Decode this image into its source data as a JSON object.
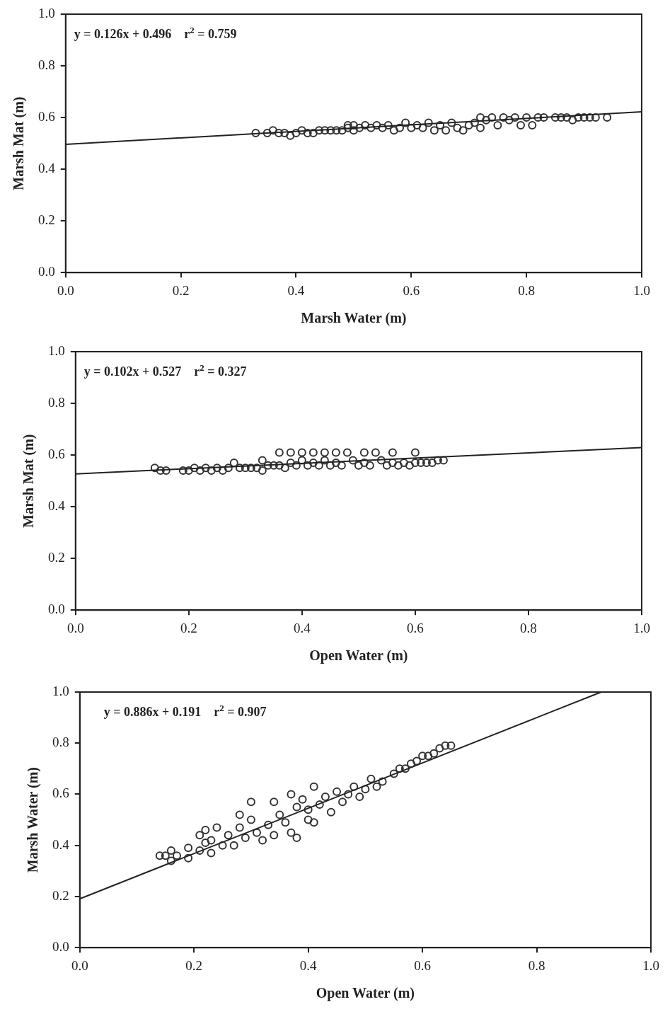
{
  "chart_data": [
    {
      "type": "scatter",
      "xlabel": "Marsh Water (m)",
      "ylabel": "Marsh Mat (m)",
      "annotations": [
        "y = 0.126x + 0.496    r$^{2}$ = 0.759"
      ],
      "xlim": [
        0,
        1
      ],
      "ylim": [
        0,
        1
      ],
      "xticks": [
        {
          "value": 0,
          "label": "0.0"
        },
        {
          "value": 0.2,
          "label": "0.2"
        },
        {
          "value": 0.4,
          "label": "0.4"
        },
        {
          "value": 0.6,
          "label": "0.6"
        },
        {
          "value": 0.8,
          "label": "0.8"
        },
        {
          "value": 1,
          "label": "1.0"
        }
      ],
      "yticks": [
        {
          "value": 0,
          "label": "0.0"
        },
        {
          "value": 0.2,
          "label": "0.2"
        },
        {
          "value": 0.4,
          "label": "0.4"
        },
        {
          "value": 0.6,
          "label": "0.6"
        },
        {
          "value": 0.8,
          "label": "0.8"
        },
        {
          "value": 1,
          "label": "1.0"
        }
      ],
      "grid": false,
      "legend": false,
      "marker": "circle",
      "series": [
        {
          "type": "scatter",
          "color": "#333333",
          "x": [
            0.33,
            0.35,
            0.36,
            0.37,
            0.38,
            0.39,
            0.4,
            0.41,
            0.42,
            0.43,
            0.44,
            0.45,
            0.46,
            0.47,
            0.48,
            0.49,
            0.49,
            0.5,
            0.5,
            0.51,
            0.52,
            0.53,
            0.54,
            0.55,
            0.56,
            0.57,
            0.58,
            0.59,
            0.6,
            0.61,
            0.62,
            0.63,
            0.64,
            0.65,
            0.66,
            0.67,
            0.68,
            0.69,
            0.7,
            0.71,
            0.72,
            0.72,
            0.73,
            0.74,
            0.75,
            0.76,
            0.77,
            0.78,
            0.79,
            0.8,
            0.81,
            0.82,
            0.83,
            0.85,
            0.86,
            0.87,
            0.88,
            0.89,
            0.9,
            0.91,
            0.92,
            0.94
          ],
          "values": [
            0.54,
            0.54,
            0.55,
            0.54,
            0.54,
            0.53,
            0.54,
            0.55,
            0.54,
            0.54,
            0.55,
            0.55,
            0.55,
            0.55,
            0.55,
            0.56,
            0.57,
            0.57,
            0.55,
            0.56,
            0.57,
            0.56,
            0.57,
            0.56,
            0.57,
            0.55,
            0.56,
            0.58,
            0.56,
            0.57,
            0.56,
            0.58,
            0.55,
            0.57,
            0.55,
            0.58,
            0.56,
            0.55,
            0.57,
            0.58,
            0.6,
            0.56,
            0.59,
            0.6,
            0.57,
            0.6,
            0.59,
            0.6,
            0.57,
            0.6,
            0.57,
            0.6,
            0.6,
            0.6,
            0.6,
            0.6,
            0.59,
            0.6,
            0.6,
            0.6,
            0.6,
            0.6
          ]
        },
        {
          "type": "line",
          "color": "#222222",
          "x": [
            0,
            1
          ],
          "values": [
            0.496,
            0.622
          ],
          "marker": "none",
          "line_style": "solid"
        }
      ]
    },
    {
      "type": "scatter",
      "xlabel": "Open Water (m)",
      "ylabel": "Marsh Mat (m)",
      "annotations": [
        "y = 0.102x + 0.527    r$^{2}$ = 0.327"
      ],
      "xlim": [
        0,
        1
      ],
      "ylim": [
        0,
        1
      ],
      "xticks": [
        {
          "value": 0,
          "label": "0.0"
        },
        {
          "value": 0.2,
          "label": "0.2"
        },
        {
          "value": 0.4,
          "label": "0.4"
        },
        {
          "value": 0.6,
          "label": "0.6"
        },
        {
          "value": 0.8,
          "label": "0.8"
        },
        {
          "value": 1,
          "label": "1.0"
        }
      ],
      "yticks": [
        {
          "value": 0,
          "label": "0.0"
        },
        {
          "value": 0.2,
          "label": "0.2"
        },
        {
          "value": 0.4,
          "label": "0.4"
        },
        {
          "value": 0.6,
          "label": "0.6"
        },
        {
          "value": 0.8,
          "label": "0.8"
        },
        {
          "value": 1,
          "label": "1.0"
        }
      ],
      "grid": false,
      "legend": false,
      "marker": "circle",
      "series": [
        {
          "type": "scatter",
          "color": "#333333",
          "x": [
            0.14,
            0.15,
            0.16,
            0.19,
            0.2,
            0.21,
            0.22,
            0.23,
            0.24,
            0.25,
            0.26,
            0.27,
            0.28,
            0.29,
            0.3,
            0.31,
            0.32,
            0.33,
            0.33,
            0.34,
            0.35,
            0.36,
            0.36,
            0.37,
            0.38,
            0.38,
            0.39,
            0.4,
            0.4,
            0.41,
            0.42,
            0.42,
            0.43,
            0.44,
            0.44,
            0.45,
            0.46,
            0.46,
            0.47,
            0.48,
            0.49,
            0.5,
            0.51,
            0.51,
            0.52,
            0.53,
            0.54,
            0.55,
            0.56,
            0.56,
            0.57,
            0.58,
            0.59,
            0.6,
            0.6,
            0.61,
            0.62,
            0.63,
            0.64,
            0.65
          ],
          "values": [
            0.55,
            0.54,
            0.54,
            0.54,
            0.54,
            0.55,
            0.54,
            0.55,
            0.54,
            0.55,
            0.54,
            0.55,
            0.57,
            0.55,
            0.55,
            0.55,
            0.55,
            0.58,
            0.54,
            0.56,
            0.56,
            0.61,
            0.56,
            0.55,
            0.61,
            0.57,
            0.56,
            0.61,
            0.58,
            0.56,
            0.61,
            0.57,
            0.56,
            0.61,
            0.58,
            0.56,
            0.61,
            0.57,
            0.56,
            0.61,
            0.58,
            0.56,
            0.61,
            0.57,
            0.56,
            0.61,
            0.58,
            0.56,
            0.61,
            0.57,
            0.56,
            0.57,
            0.56,
            0.61,
            0.57,
            0.57,
            0.57,
            0.57,
            0.58,
            0.58
          ]
        },
        {
          "type": "line",
          "color": "#222222",
          "x": [
            0,
            1
          ],
          "values": [
            0.527,
            0.629
          ],
          "marker": "none",
          "line_style": "solid"
        }
      ]
    },
    {
      "type": "scatter",
      "xlabel": "Open Water (m)",
      "ylabel": "Marsh Water (m)",
      "annotations": [
        "y = 0.886x + 0.191    r$^{2}$ = 0.907"
      ],
      "xlim": [
        0,
        1
      ],
      "ylim": [
        0,
        1
      ],
      "xticks": [
        {
          "value": 0,
          "label": "0.0"
        },
        {
          "value": 0.2,
          "label": "0.2"
        },
        {
          "value": 0.4,
          "label": "0.4"
        },
        {
          "value": 0.6,
          "label": "0.6"
        },
        {
          "value": 0.8,
          "label": "0.8"
        },
        {
          "value": 1,
          "label": "1.0"
        }
      ],
      "yticks": [
        {
          "value": 0,
          "label": "0.0"
        },
        {
          "value": 0.2,
          "label": "0.2"
        },
        {
          "value": 0.4,
          "label": "0.4"
        },
        {
          "value": 0.6,
          "label": "0.6"
        },
        {
          "value": 0.8,
          "label": "0.8"
        },
        {
          "value": 1,
          "label": "1.0"
        }
      ],
      "grid": false,
      "legend": false,
      "marker": "circle",
      "series": [
        {
          "type": "scatter",
          "color": "#333333",
          "x": [
            0.14,
            0.15,
            0.16,
            0.16,
            0.17,
            0.19,
            0.19,
            0.21,
            0.21,
            0.22,
            0.22,
            0.23,
            0.23,
            0.24,
            0.25,
            0.26,
            0.27,
            0.28,
            0.28,
            0.29,
            0.3,
            0.3,
            0.31,
            0.32,
            0.33,
            0.34,
            0.34,
            0.35,
            0.36,
            0.37,
            0.37,
            0.38,
            0.38,
            0.39,
            0.4,
            0.4,
            0.41,
            0.41,
            0.42,
            0.43,
            0.44,
            0.45,
            0.46,
            0.47,
            0.48,
            0.49,
            0.5,
            0.51,
            0.52,
            0.53,
            0.55,
            0.56,
            0.57,
            0.58,
            0.59,
            0.6,
            0.61,
            0.62,
            0.63,
            0.64,
            0.65
          ],
          "values": [
            0.36,
            0.36,
            0.38,
            0.34,
            0.36,
            0.35,
            0.39,
            0.38,
            0.44,
            0.46,
            0.41,
            0.37,
            0.42,
            0.47,
            0.4,
            0.44,
            0.4,
            0.47,
            0.52,
            0.43,
            0.5,
            0.57,
            0.45,
            0.42,
            0.48,
            0.57,
            0.44,
            0.52,
            0.49,
            0.6,
            0.45,
            0.55,
            0.43,
            0.58,
            0.5,
            0.54,
            0.63,
            0.49,
            0.56,
            0.59,
            0.53,
            0.61,
            0.57,
            0.6,
            0.63,
            0.59,
            0.62,
            0.66,
            0.63,
            0.65,
            0.68,
            0.7,
            0.7,
            0.72,
            0.73,
            0.75,
            0.75,
            0.76,
            0.78,
            0.79,
            0.79
          ]
        },
        {
          "type": "line",
          "color": "#222222",
          "x": [
            0,
            0.913
          ],
          "values": [
            0.191,
            1.0
          ],
          "marker": "none",
          "line_style": "solid"
        }
      ]
    }
  ]
}
